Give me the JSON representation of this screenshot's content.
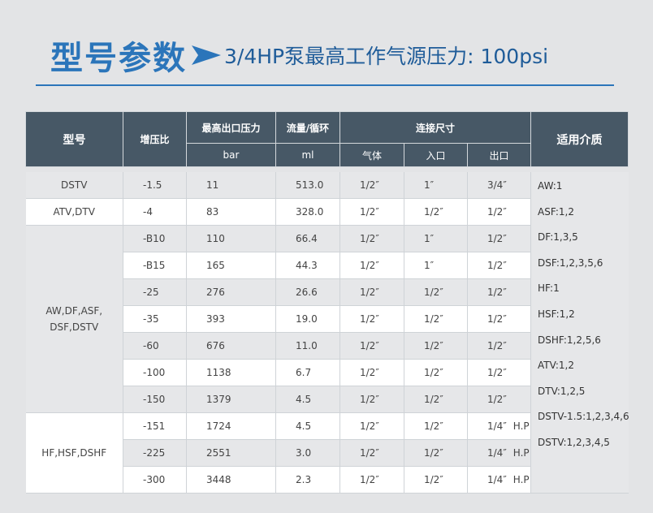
{
  "title": {
    "main": "型号参数",
    "sub": "3/4HP泵最高工作气源压力: 100psi"
  },
  "header": {
    "model": "型号",
    "ratio": "增压比",
    "max_pressure": "最高出口压力",
    "flow": "流量/循环",
    "connection": "连接尺寸",
    "media": "适用介质",
    "unit_pressure": "bar",
    "unit_flow": "ml",
    "gas": "气体",
    "inlet": "入口",
    "outlet": "出口"
  },
  "groups": {
    "g1": "DSTV",
    "g2": "ATV,DTV",
    "g3_l1": "AW,DF,ASF,",
    "g3_l2": "DSF,DSTV",
    "g4": "HF,HSF,DSHF"
  },
  "rows": [
    {
      "ratio": "-1.5",
      "bar": "11",
      "ml": "513.0",
      "gas": "1/2″",
      "inlet": "1″",
      "outlet": "3/4″",
      "hp": ""
    },
    {
      "ratio": "-4",
      "bar": "83",
      "ml": "328.0",
      "gas": "1/2″",
      "inlet": "1/2″",
      "outlet": "1/2″",
      "hp": ""
    },
    {
      "ratio": "-B10",
      "bar": "110",
      "ml": "66.4",
      "gas": "1/2″",
      "inlet": "1″",
      "outlet": "1/2″",
      "hp": ""
    },
    {
      "ratio": "-B15",
      "bar": "165",
      "ml": "44.3",
      "gas": "1/2″",
      "inlet": "1″",
      "outlet": "1/2″",
      "hp": ""
    },
    {
      "ratio": "-25",
      "bar": "276",
      "ml": "26.6",
      "gas": "1/2″",
      "inlet": "1/2″",
      "outlet": "1/2″",
      "hp": ""
    },
    {
      "ratio": "-35",
      "bar": "393",
      "ml": "19.0",
      "gas": "1/2″",
      "inlet": "1/2″",
      "outlet": "1/2″",
      "hp": ""
    },
    {
      "ratio": "-60",
      "bar": "676",
      "ml": "11.0",
      "gas": "1/2″",
      "inlet": "1/2″",
      "outlet": "1/2″",
      "hp": ""
    },
    {
      "ratio": "-100",
      "bar": "1138",
      "ml": "6.7",
      "gas": "1/2″",
      "inlet": "1/2″",
      "outlet": "1/2″",
      "hp": ""
    },
    {
      "ratio": "-150",
      "bar": "1379",
      "ml": "4.5",
      "gas": "1/2″",
      "inlet": "1/2″",
      "outlet": "1/2″",
      "hp": ""
    },
    {
      "ratio": "-151",
      "bar": "1724",
      "ml": "4.5",
      "gas": "1/2″",
      "inlet": "1/2″",
      "outlet": "1/4″",
      "hp": "H.P"
    },
    {
      "ratio": "-225",
      "bar": "2551",
      "ml": "3.0",
      "gas": "1/2″",
      "inlet": "1/2″",
      "outlet": "1/4″",
      "hp": "H.P"
    },
    {
      "ratio": "-300",
      "bar": "3448",
      "ml": "2.3",
      "gas": "1/2″",
      "inlet": "1/2″",
      "outlet": "1/4″",
      "hp": "H.P"
    }
  ],
  "media_list": [
    "AW:1",
    "ASF:1,2",
    "DF:1,3,5",
    "DSF:1,2,3,5,6",
    "HF:1",
    "HSF:1,2",
    "DSHF:1,2,5,6",
    "ATV:1,2",
    "DTV:1,2,5",
    "DSTV-1.5:1,2,3,4,6",
    "DSTV:1,2,3,4,5"
  ],
  "colors": {
    "title_blue": "#2b75ba",
    "header_bg": "#475866",
    "page_bg": "#e3e4e6",
    "row_alt": "#e6e7e9"
  }
}
